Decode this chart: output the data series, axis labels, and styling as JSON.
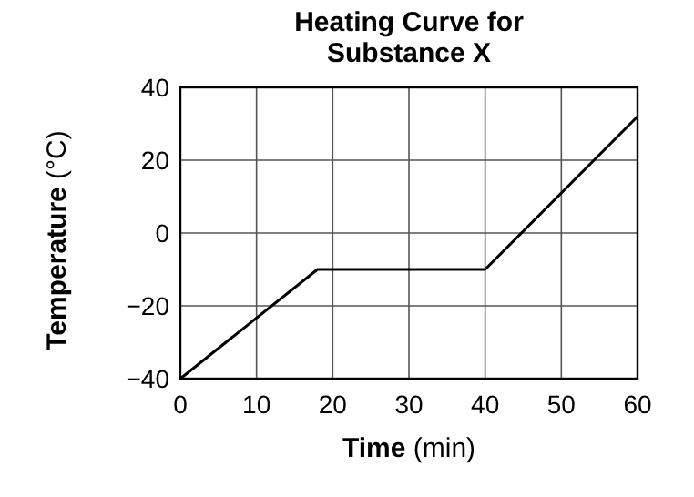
{
  "chart_data": {
    "type": "line",
    "title": "Heating Curve for\nSubstance X",
    "xlabel": "Time (min)",
    "ylabel": "Temperature (°C)",
    "x": [
      0,
      18,
      40,
      60
    ],
    "series": [
      {
        "color": "#000000",
        "values": [
          -40,
          -10,
          -10,
          32
        ]
      }
    ],
    "xlim": [
      0,
      60
    ],
    "xticks": [
      0,
      10,
      20,
      30,
      40,
      50,
      60
    ],
    "ylim": [
      -40,
      40
    ],
    "yticks": [
      40,
      20,
      0,
      -20,
      -40
    ],
    "grid": true,
    "marker": "none",
    "line_style": "solid"
  }
}
